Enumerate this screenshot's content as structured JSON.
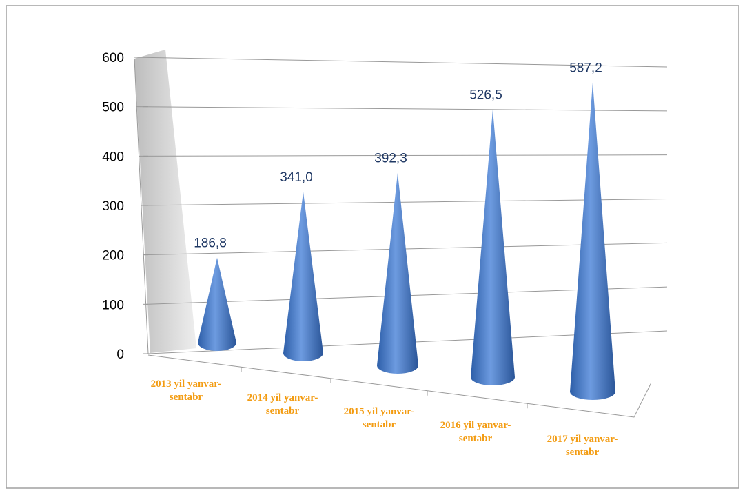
{
  "chart_data": {
    "type": "cone",
    "categories": [
      "2013 yil yanvar-sentabr",
      "2014 yil yanvar-sentabr",
      "2015 yil yanvar-sentabr",
      "2016 yil yanvar-sentabr",
      "2017 yil yanvar-sentabr"
    ],
    "values": [
      186.8,
      341.0,
      392.3,
      526.5,
      587.2
    ],
    "value_labels": [
      "186,8",
      "341,0",
      "392,3",
      "526,5",
      "587,2"
    ],
    "color": "#4a7fd0",
    "ylim": [
      0,
      600
    ],
    "yticks": [
      0,
      100,
      200,
      300,
      400,
      500,
      600
    ],
    "grid": true
  }
}
